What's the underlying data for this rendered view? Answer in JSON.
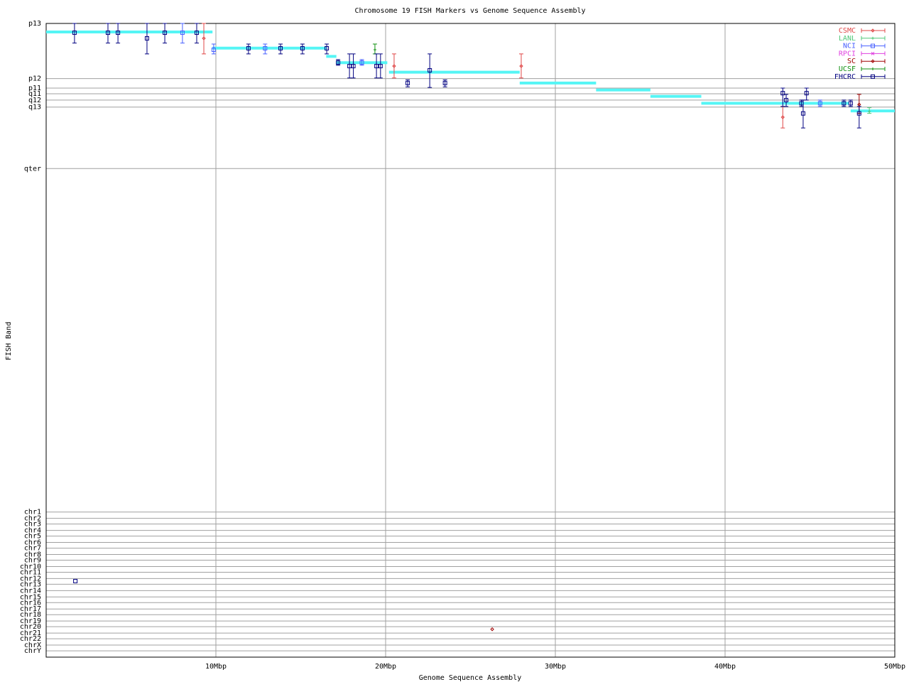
{
  "chart_data": {
    "type": "errorbar",
    "title": "Chromosome 19 FISH Markers vs Genome Sequence Assembly",
    "x_label": "Genome Sequence Assembly",
    "y_label": "FISH Band",
    "xlim": [
      0,
      50
    ],
    "xticks": [
      {
        "value": 10,
        "label": "10Mbp"
      },
      {
        "value": 20,
        "label": "20Mbp"
      },
      {
        "value": 30,
        "label": "30Mbp"
      },
      {
        "value": 40,
        "label": "40Mbp"
      },
      {
        "value": 50,
        "label": "50Mbp"
      }
    ],
    "ylim": [
      100,
      0
    ],
    "yticks": [
      {
        "value": 0,
        "label": "p13"
      },
      {
        "value": 8.7,
        "label": "p12"
      },
      {
        "value": 10.2,
        "label": "p11"
      },
      {
        "value": 11.1,
        "label": "q11"
      },
      {
        "value": 12.1,
        "label": "q12"
      },
      {
        "value": 13.2,
        "label": "q13"
      },
      {
        "value": 22.9,
        "label": "qter"
      },
      {
        "value": 77.1,
        "label": "chr1"
      },
      {
        "value": 78.1,
        "label": "chr2"
      },
      {
        "value": 79.0,
        "label": "chr3"
      },
      {
        "value": 80.0,
        "label": "chr4"
      },
      {
        "value": 80.9,
        "label": "chr5"
      },
      {
        "value": 81.9,
        "label": "chr6"
      },
      {
        "value": 82.8,
        "label": "chr7"
      },
      {
        "value": 83.8,
        "label": "chr8"
      },
      {
        "value": 84.7,
        "label": "chr9"
      },
      {
        "value": 85.7,
        "label": "chr10"
      },
      {
        "value": 86.6,
        "label": "chr11"
      },
      {
        "value": 87.6,
        "label": "chr12"
      },
      {
        "value": 88.5,
        "label": "chr13"
      },
      {
        "value": 89.5,
        "label": "chr14"
      },
      {
        "value": 90.5,
        "label": "chr15"
      },
      {
        "value": 91.4,
        "label": "chr16"
      },
      {
        "value": 92.4,
        "label": "chr17"
      },
      {
        "value": 93.3,
        "label": "chr18"
      },
      {
        "value": 94.3,
        "label": "chr19"
      },
      {
        "value": 95.2,
        "label": "chr20"
      },
      {
        "value": 96.2,
        "label": "chr21"
      },
      {
        "value": 97.1,
        "label": "chr22"
      },
      {
        "value": 98.1,
        "label": "chrX"
      },
      {
        "value": 99.0,
        "label": "chrY"
      }
    ],
    "grid": true,
    "legend": "upper right",
    "assembly": {
      "color": "#55f5f5",
      "x_start": [
        0,
        9.8,
        16.5,
        17.1,
        20.2,
        27.9,
        32.4,
        35.6,
        38.6,
        47.4
      ],
      "x_end": [
        9.8,
        16.5,
        17.1,
        20.1,
        27.9,
        32.4,
        35.6,
        38.6,
        47.3,
        50
      ],
      "values": [
        1.35,
        3.9,
        5.2,
        6.2,
        7.7,
        9.4,
        10.5,
        11.5,
        12.6,
        13.8
      ]
    },
    "series": [
      {
        "name": "CSMC",
        "color": "#e04848",
        "marker": "diamond",
        "x": [
          9.29,
          20.5,
          27.99,
          43.4
        ],
        "values": [
          2.35,
          6.73,
          6.73,
          14.8
        ],
        "ymin": [
          0,
          4.8,
          4.8,
          13.1
        ],
        "ymax": [
          4.8,
          8.6,
          8.6,
          16.5
        ]
      },
      {
        "name": "LANL",
        "color": "#50c878",
        "marker": "plus",
        "x": [
          48.5
        ],
        "values": [
          13.9
        ],
        "ymin": [
          13.3
        ],
        "ymax": [
          14.2
        ]
      },
      {
        "name": "NCI",
        "color": "#4860ff",
        "marker": "square",
        "x": [
          8.03,
          9.87,
          12.9,
          18.6,
          45.6
        ],
        "values": [
          1.46,
          4.15,
          3.92,
          6.17,
          12.6
        ],
        "ymin": [
          0,
          3.25,
          3.25,
          5.7,
          12.1
        ],
        "ymax": [
          3.1,
          4.8,
          4.8,
          6.6,
          13.1
        ]
      },
      {
        "name": "RPCI",
        "color": "#e040e0",
        "marker": "cross",
        "x": [],
        "values": [],
        "ymin": [],
        "ymax": []
      },
      {
        "name": "SC",
        "color": "#a00000",
        "marker": "diamond",
        "x": [
          47.9,
          26.28
        ],
        "values": [
          12.8,
          95.6
        ],
        "ymin": [
          11.2,
          null
        ],
        "ymax": [
          14.2,
          null
        ]
      },
      {
        "name": "UCSF",
        "color": "#109010",
        "marker": "plus",
        "x": [
          19.37
        ],
        "values": [
          4.15
        ],
        "ymin": [
          3.25
        ],
        "ymax": [
          4.8
        ]
      },
      {
        "name": "FHCRC",
        "color": "#000080",
        "marker": "square",
        "x": [
          1.67,
          3.64,
          4.23,
          5.94,
          6.99,
          8.87,
          11.92,
          13.81,
          15.1,
          16.53,
          17.2,
          17.87,
          18.1,
          19.46,
          19.7,
          21.3,
          22.6,
          23.5,
          43.4,
          43.6,
          44.5,
          44.6,
          44.8,
          47.0,
          47.4,
          47.9,
          1.72
        ],
        "values": [
          1.46,
          1.46,
          1.46,
          2.35,
          1.46,
          1.46,
          3.92,
          3.92,
          3.92,
          3.92,
          6.17,
          6.73,
          6.73,
          6.73,
          6.73,
          9.4,
          7.4,
          9.4,
          11.0,
          12.1,
          12.6,
          14.2,
          11.0,
          12.6,
          12.6,
          14.2,
          88.0
        ],
        "ymin": [
          0,
          0,
          0,
          0,
          0,
          0,
          3.25,
          3.25,
          3.25,
          3.25,
          5.7,
          4.8,
          4.8,
          4.8,
          4.8,
          8.9,
          4.8,
          8.9,
          10.2,
          11.2,
          12.1,
          12.1,
          10.2,
          12.1,
          12.1,
          13.1,
          null
        ],
        "ymax": [
          3.1,
          3.1,
          3.1,
          4.8,
          3.1,
          3.1,
          4.8,
          4.8,
          4.8,
          4.8,
          6.6,
          8.6,
          8.6,
          8.6,
          8.6,
          10.0,
          10.1,
          10.0,
          13.1,
          13.1,
          13.1,
          16.5,
          12.1,
          13.1,
          13.1,
          16.5,
          null
        ]
      }
    ]
  }
}
